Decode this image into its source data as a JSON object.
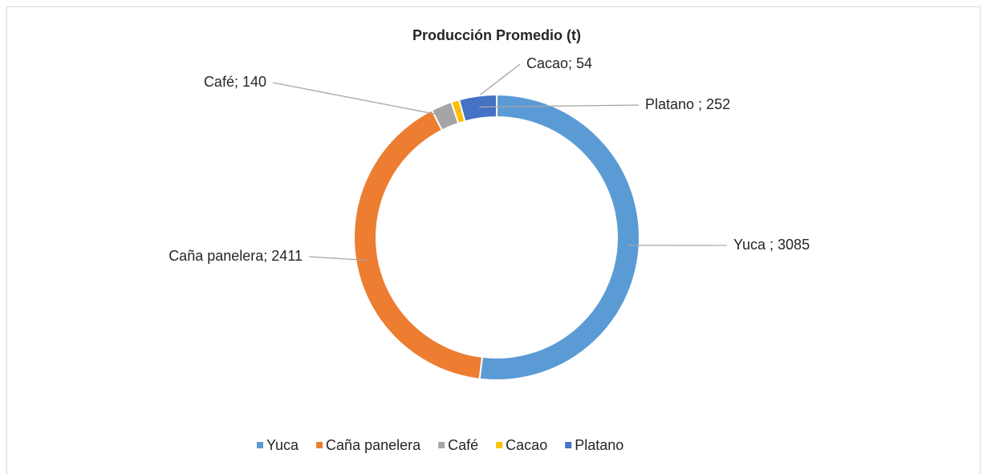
{
  "chart_data": {
    "type": "donut",
    "title": "Producción Promedio (t)",
    "categories": [
      "Yuca",
      "Caña panelera",
      "Café",
      "Cacao",
      "Platano"
    ],
    "values": [
      3085,
      2411,
      140,
      54,
      252
    ],
    "value_labels": [
      "Yuca ; 3085",
      "Caña panelera; 2411",
      "Café; 140",
      "Cacao; 54",
      "Platano ; 252"
    ],
    "colors": [
      "#5b9bd5",
      "#ed7d31",
      "#a5a5a5",
      "#ffc000",
      "#4472c4"
    ],
    "legend": "bottom"
  }
}
